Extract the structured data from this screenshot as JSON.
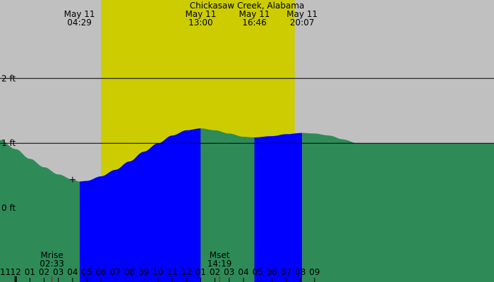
{
  "chart_data": {
    "type": "area",
    "title": "Chickasaw Creek, Alabama",
    "xlabel": "",
    "ylabel": "",
    "x_range_hours": [
      -1.1,
      33.6
    ],
    "ylim": [
      -1.14,
      3.21
    ],
    "grid": true,
    "y_ticks": [
      {
        "value": 0,
        "label": "0 ft"
      },
      {
        "value": 1,
        "label": "1 ft"
      },
      {
        "value": 2,
        "label": "2 ft"
      }
    ],
    "y_grid_lines": [
      1,
      2
    ],
    "x_ticks": [
      {
        "hour": 0,
        "label": "12"
      },
      {
        "hour": 1,
        "label": "01"
      },
      {
        "hour": 2,
        "label": "02"
      },
      {
        "hour": 3,
        "label": "03"
      },
      {
        "hour": 4,
        "label": "04"
      },
      {
        "hour": 5,
        "label": "05"
      },
      {
        "hour": 6,
        "label": "06"
      },
      {
        "hour": 7,
        "label": "07"
      },
      {
        "hour": 8,
        "label": "08"
      },
      {
        "hour": 9,
        "label": "09"
      },
      {
        "hour": 10,
        "label": "10"
      },
      {
        "hour": 11,
        "label": "11"
      },
      {
        "hour": 12,
        "label": "12"
      },
      {
        "hour": 13,
        "label": "01"
      },
      {
        "hour": 14,
        "label": "02"
      },
      {
        "hour": 15,
        "label": "03"
      },
      {
        "hour": 16,
        "label": "04"
      },
      {
        "hour": 17,
        "label": "05"
      },
      {
        "hour": 18,
        "label": "06"
      },
      {
        "hour": 19,
        "label": "07"
      },
      {
        "hour": 20,
        "label": "08"
      },
      {
        "hour": 21,
        "label": "09"
      }
    ],
    "x_edge_labels": [
      {
        "hour": -1,
        "label": "11"
      }
    ],
    "tide_curve": {
      "hours": [
        -1.1,
        0,
        1,
        2,
        3,
        4,
        4.48,
        5,
        6,
        7,
        8,
        9,
        10,
        11,
        12,
        13,
        14,
        15,
        16,
        16.77,
        18,
        19,
        20.12,
        21,
        22,
        23,
        24
      ],
      "heights": [
        1.05,
        0.91,
        0.76,
        0.63,
        0.52,
        0.44,
        0.41,
        0.42,
        0.49,
        0.59,
        0.72,
        0.87,
        1.0,
        1.12,
        1.2,
        1.23,
        1.2,
        1.15,
        1.1,
        1.09,
        1.11,
        1.14,
        1.16,
        1.15,
        1.12,
        1.06,
        1.0
      ]
    },
    "daylight_hours": [
      6.0,
      19.6
    ],
    "tidal_phases": [
      {
        "from": -1.1,
        "to": 4.5,
        "phase": "falling",
        "color": "#2e8b57"
      },
      {
        "from": 4.5,
        "to": 13.0,
        "phase": "rising",
        "color": "#0000ff"
      },
      {
        "from": 13.0,
        "to": 16.77,
        "phase": "falling",
        "color": "#2e8b57"
      },
      {
        "from": 16.77,
        "to": 20.12,
        "phase": "rising",
        "color": "#0000ff"
      },
      {
        "from": 20.12,
        "to": 33.6,
        "phase": "falling",
        "color": "#2e8b57"
      }
    ],
    "events": [
      {
        "hour": 4.48,
        "date": "May 11",
        "time": "04:29"
      },
      {
        "hour": 13.0,
        "date": "May 11",
        "time": "13:00"
      },
      {
        "hour": 16.77,
        "date": "May 11",
        "time": "16:46"
      },
      {
        "hour": 20.12,
        "date": "May 11",
        "time": "20:07"
      }
    ],
    "marker": {
      "hour": 4.0,
      "height": 0.44,
      "symbol": "+"
    },
    "moon_events": [
      {
        "hour": 2.55,
        "label": "Mrise",
        "time": "02:33"
      },
      {
        "hour": 14.32,
        "label": "Mset",
        "time": "14:19"
      }
    ],
    "colors": {
      "background": "#c0c0c0",
      "daylight": "#cccc00",
      "rising": "#0000ff",
      "falling": "#2e8b57",
      "moon_tick": "#cc0000"
    }
  }
}
